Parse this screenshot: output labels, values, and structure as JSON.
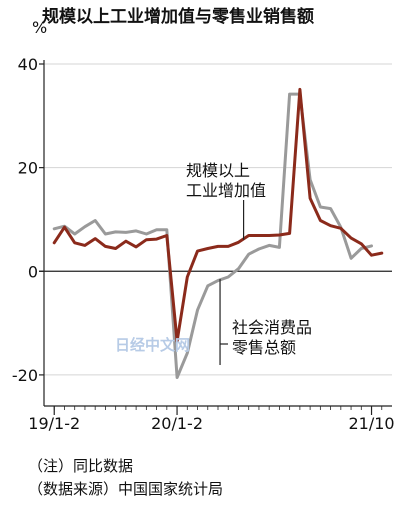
{
  "title": "规模以上工业增加值与零售业销售额",
  "unit": "%",
  "notes": [
    "（注）同比数据",
    "（数据来源）中国国家统计局"
  ],
  "watermark": "日经中文网",
  "chart_data": {
    "type": "line",
    "ylim": [
      -26,
      40
    ],
    "yticks": [
      40,
      20,
      0,
      -20
    ],
    "x_range": [
      0,
      34
    ],
    "x_ticks": [
      {
        "label": "19/1-2",
        "x": 1
      },
      {
        "label": "20/1-2",
        "x": 13
      },
      {
        "label": "21/10",
        "x": 32
      }
    ],
    "series": [
      {
        "name": "规模以上工业增加值",
        "color": "#8b2a1b",
        "label_lines": [
          "规模以上",
          "工业增加值"
        ],
        "points": [
          [
            1,
            5.5
          ],
          [
            2,
            8.5
          ],
          [
            3,
            5.5
          ],
          [
            4,
            5.0
          ],
          [
            5,
            6.3
          ],
          [
            6,
            4.8
          ],
          [
            7,
            4.4
          ],
          [
            8,
            5.8
          ],
          [
            9,
            4.7
          ],
          [
            10,
            6.1
          ],
          [
            11,
            6.2
          ],
          [
            12,
            6.9
          ],
          [
            13,
            -13.5
          ],
          [
            14,
            -1.1
          ],
          [
            15,
            3.9
          ],
          [
            16,
            4.4
          ],
          [
            17,
            4.8
          ],
          [
            18,
            4.8
          ],
          [
            19,
            5.6
          ],
          [
            20,
            6.9
          ],
          [
            21,
            6.9
          ],
          [
            22,
            6.9
          ],
          [
            23,
            7.0
          ],
          [
            24,
            7.3
          ],
          [
            25,
            35.1
          ],
          [
            26,
            14.1
          ],
          [
            27,
            9.8
          ],
          [
            28,
            8.8
          ],
          [
            29,
            8.3
          ],
          [
            30,
            6.4
          ],
          [
            31,
            5.3
          ],
          [
            32,
            3.1
          ],
          [
            33,
            3.5
          ]
        ]
      },
      {
        "name": "社会消费品零售总额",
        "color": "#9a9a9a",
        "label_lines": [
          "社会消费品",
          "零售总额"
        ],
        "points": [
          [
            1,
            8.2
          ],
          [
            2,
            8.7
          ],
          [
            3,
            7.2
          ],
          [
            4,
            8.6
          ],
          [
            5,
            9.8
          ],
          [
            6,
            7.2
          ],
          [
            7,
            7.6
          ],
          [
            8,
            7.5
          ],
          [
            9,
            7.8
          ],
          [
            10,
            7.2
          ],
          [
            11,
            8.0
          ],
          [
            12,
            8.0
          ],
          [
            13,
            -20.5
          ],
          [
            14,
            -15.8
          ],
          [
            15,
            -7.5
          ],
          [
            16,
            -2.8
          ],
          [
            17,
            -1.8
          ],
          [
            18,
            -1.1
          ],
          [
            19,
            0.5
          ],
          [
            20,
            3.3
          ],
          [
            21,
            4.3
          ],
          [
            22,
            5.0
          ],
          [
            23,
            4.6
          ],
          [
            24,
            34.2
          ],
          [
            25,
            34.2
          ],
          [
            26,
            17.7
          ],
          [
            27,
            12.4
          ],
          [
            28,
            12.1
          ],
          [
            29,
            8.5
          ],
          [
            30,
            2.5
          ],
          [
            31,
            4.4
          ],
          [
            32,
            4.9
          ]
        ]
      }
    ]
  }
}
